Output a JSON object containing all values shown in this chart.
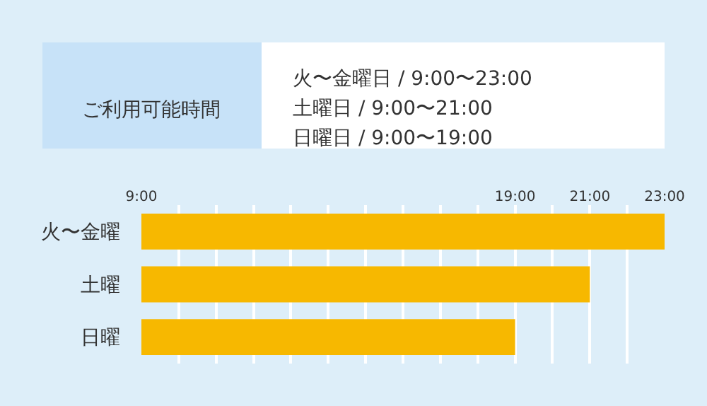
{
  "chart_data": [
    {
      "type": "other",
      "title": "ご利用可能時間",
      "annotations": [
        "火〜金曜日 / 9:00〜23:00",
        "土曜日 / 9:00〜21:00",
        "日曜日 / 9:00〜19:00"
      ]
    },
    {
      "type": "bar",
      "orientation": "horizontal",
      "categories": [
        "火〜金曜",
        "土曜",
        "日曜"
      ],
      "base": [
        9,
        9,
        9
      ],
      "values": [
        14,
        12,
        10
      ],
      "color": "#f7b800",
      "xlim": [
        9,
        23
      ],
      "xticks": [
        {
          "value": 9,
          "label": "9:00"
        },
        {
          "value": 10,
          "label": null
        },
        {
          "value": 11,
          "label": null
        },
        {
          "value": 12,
          "label": null
        },
        {
          "value": 13,
          "label": null
        },
        {
          "value": 14,
          "label": null
        },
        {
          "value": 15,
          "label": null
        },
        {
          "value": 16,
          "label": null
        },
        {
          "value": 17,
          "label": null
        },
        {
          "value": 18,
          "label": null
        },
        {
          "value": 19,
          "label": "19:00"
        },
        {
          "value": 20,
          "label": null
        },
        {
          "value": 21,
          "label": "21:00"
        },
        {
          "value": 22,
          "label": null
        },
        {
          "value": 23,
          "label": "23:00"
        }
      ],
      "grid": "x"
    }
  ]
}
